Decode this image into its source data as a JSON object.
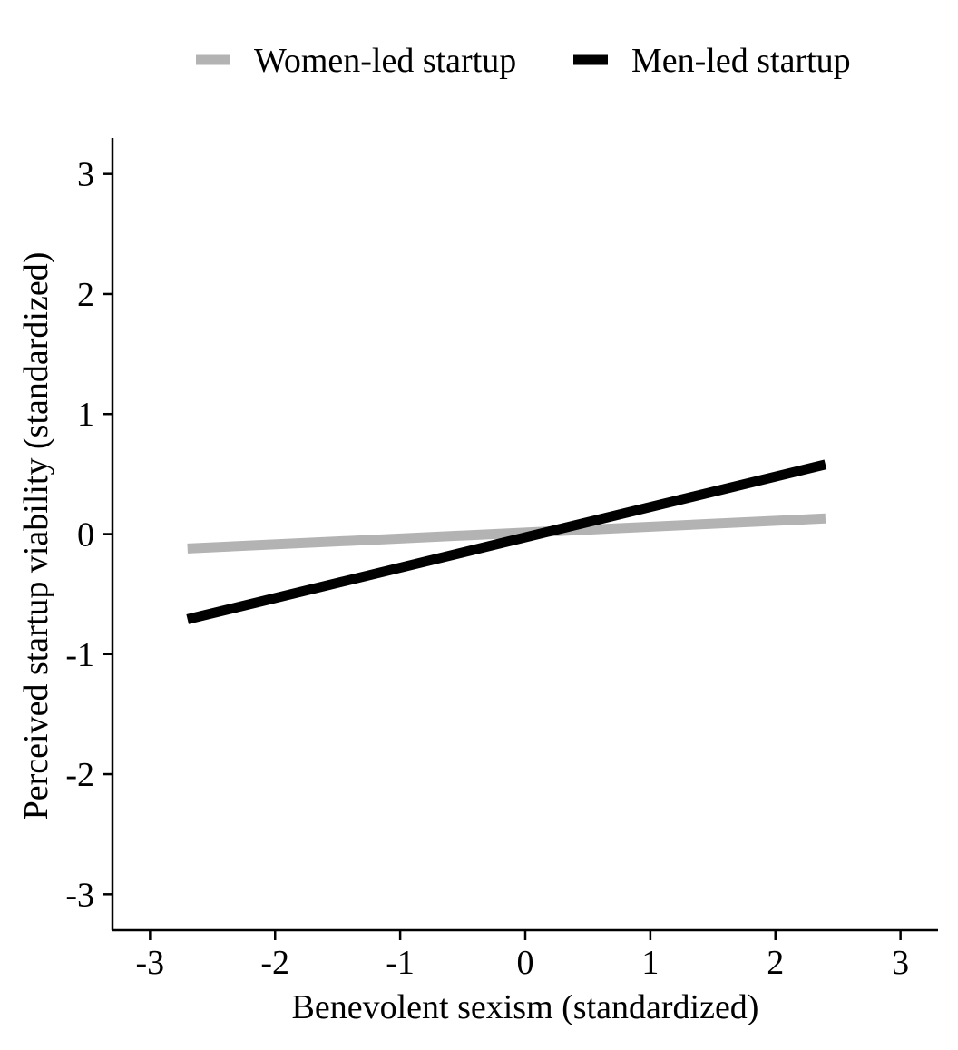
{
  "chart_data": {
    "type": "line",
    "title": "",
    "xlabel": "Benevolent sexism (standardized)",
    "ylabel": "Perceived startup viability (standardized)",
    "xlim": [
      -3.3,
      3.3
    ],
    "ylim": [
      -3.3,
      3.3
    ],
    "xticks": [
      -3,
      -2,
      -1,
      0,
      1,
      2,
      3
    ],
    "yticks": [
      -3,
      -2,
      -1,
      0,
      1,
      2,
      3
    ],
    "xtick_labels": [
      "-3",
      "-2",
      "-1",
      "0",
      "1",
      "2",
      "3"
    ],
    "ytick_labels": [
      "-3",
      "-2",
      "-1",
      "0",
      "1",
      "2",
      "3"
    ],
    "grid": false,
    "legend_position": "top",
    "series": [
      {
        "name": "Women-led startup",
        "color": "#b3b3b3",
        "x": [
          -2.7,
          2.4
        ],
        "y": [
          -0.12,
          0.13
        ]
      },
      {
        "name": "Men-led startup",
        "color": "#000000",
        "x": [
          -2.7,
          2.4
        ],
        "y": [
          -0.71,
          0.58
        ]
      }
    ]
  }
}
